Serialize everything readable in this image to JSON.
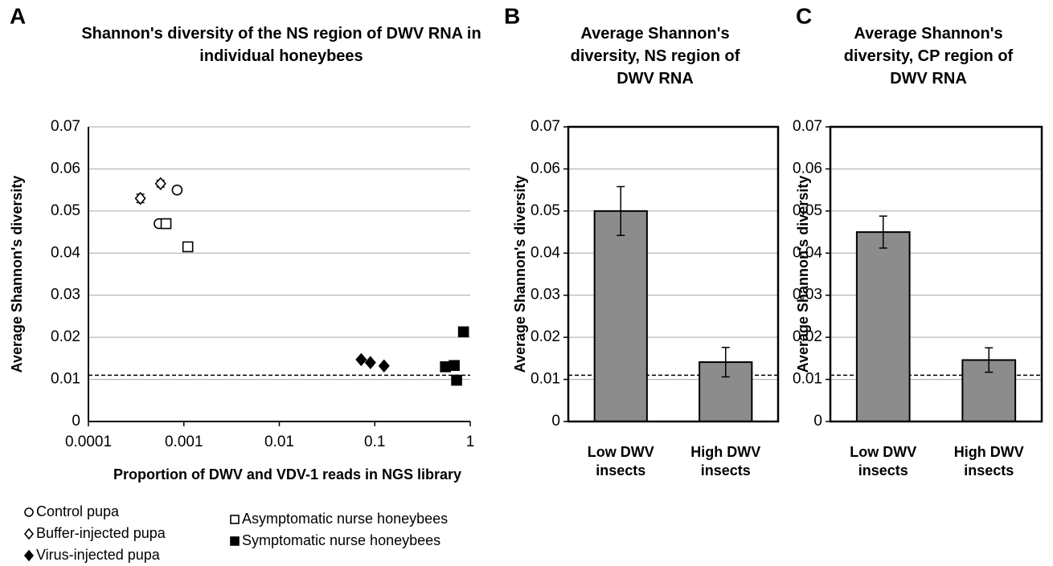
{
  "chart_data": [
    {
      "type": "scatter",
      "panel_label": "A",
      "title": "Shannon's diversity of the NS region of DWV RNA in individual honeybees",
      "xlabel": "Proportion of DWV and VDV-1 reads in NGS library",
      "ylabel": "Average Shannon's diversity",
      "xscale": "log",
      "xlim": [
        0.0001,
        1
      ],
      "xticks": [
        0.0001,
        0.001,
        0.01,
        0.1,
        1
      ],
      "ylim": [
        0,
        0.07
      ],
      "yticks": [
        0,
        0.01,
        0.02,
        0.03,
        0.04,
        0.05,
        0.06,
        0.07
      ],
      "grid": true,
      "reference_line": 0.011,
      "legend": "bottom",
      "series": [
        {
          "name": "Control pupa",
          "marker": "circle",
          "filled": false,
          "color": "#000000",
          "x": [
            0.00085,
            0.00055
          ],
          "values": [
            0.055,
            0.047
          ],
          "errors": [
            0.0008,
            0.0008
          ]
        },
        {
          "name": "Buffer-injected pupa",
          "marker": "diamond",
          "filled": false,
          "color": "#000000",
          "x": [
            0.00035,
            0.00057
          ],
          "values": [
            0.053,
            0.0565
          ],
          "errors": [
            0.001,
            0.0008
          ]
        },
        {
          "name": "Virus-injected pupa",
          "marker": "diamond",
          "filled": true,
          "color": "#000000",
          "x": [
            0.072,
            0.09,
            0.125
          ],
          "values": [
            0.0147,
            0.014,
            0.0132
          ]
        },
        {
          "name": "Asymptomatic nurse honeybees",
          "marker": "square",
          "filled": false,
          "color": "#000000",
          "x": [
            0.00065,
            0.0011
          ],
          "values": [
            0.047,
            0.0415
          ],
          "errors": [
            0.0008,
            0.0008
          ]
        },
        {
          "name": "Symptomatic nurse honeybees",
          "marker": "square",
          "filled": true,
          "color": "#000000",
          "x": [
            0.55,
            0.68,
            0.72,
            0.85
          ],
          "values": [
            0.013,
            0.0133,
            0.0098,
            0.0213
          ]
        }
      ]
    },
    {
      "type": "bar",
      "panel_label": "B",
      "title": "Average Shannon's diversity, NS region of DWV RNA",
      "ylabel": "Average Shannon's diversity",
      "categories": [
        "Low DWV insects",
        "High DWV insects"
      ],
      "values": [
        0.05,
        0.0141
      ],
      "errors": [
        0.0058,
        0.0035
      ],
      "color": "#8c8c8c",
      "ylim": [
        0,
        0.07
      ],
      "yticks": [
        0,
        0.01,
        0.02,
        0.03,
        0.04,
        0.05,
        0.06,
        0.07
      ],
      "grid": true,
      "reference_line": 0.011
    },
    {
      "type": "bar",
      "panel_label": "C",
      "title": "Average Shannon's diversity, CP region of DWV RNA",
      "ylabel": "Average Shannon's diversity",
      "categories": [
        "Low DWV insects",
        "High DWV insects"
      ],
      "values": [
        0.045,
        0.0146
      ],
      "errors": [
        0.0038,
        0.0029
      ],
      "color": "#8c8c8c",
      "ylim": [
        0,
        0.07
      ],
      "yticks": [
        0,
        0.01,
        0.02,
        0.03,
        0.04,
        0.05,
        0.06,
        0.07
      ],
      "grid": true,
      "reference_line": 0.011
    }
  ]
}
